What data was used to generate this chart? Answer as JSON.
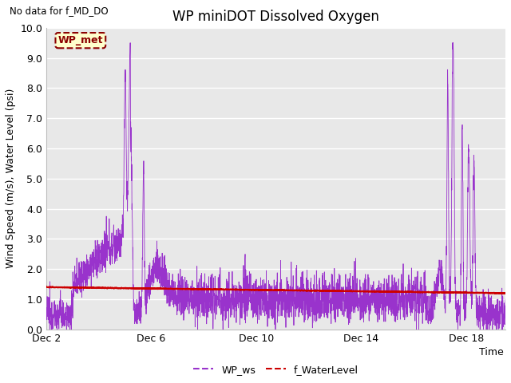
{
  "title": "WP miniDOT Dissolved Oxygen",
  "no_data_text": "No data for f_MD_DO",
  "ylabel": "Wind Speed (m/s), Water Level (psi)",
  "xlabel": "Time",
  "ylim": [
    0.0,
    10.0
  ],
  "yticks": [
    0.0,
    1.0,
    2.0,
    3.0,
    4.0,
    5.0,
    6.0,
    7.0,
    8.0,
    9.0,
    10.0
  ],
  "xlim_days": [
    0,
    17.5
  ],
  "xtick_labels": [
    "Dec 2",
    "Dec 6",
    "Dec 10",
    "Dec 14",
    "Dec 18"
  ],
  "xtick_positions": [
    0,
    4,
    8,
    12,
    16
  ],
  "legend_box_label": "WP_met",
  "legend_box_bg": "#ffffcc",
  "legend_box_border": "#8b0000",
  "ws_color": "#9933cc",
  "wl_color": "#cc0000",
  "bg_color": "#e8e8e8",
  "grid_color": "#ffffff",
  "legend_labels": [
    "WP_ws",
    "f_WaterLevel"
  ],
  "title_fontsize": 12,
  "axis_fontsize": 9,
  "tick_fontsize": 9,
  "wl_start": 1.4,
  "wl_end": 1.2
}
